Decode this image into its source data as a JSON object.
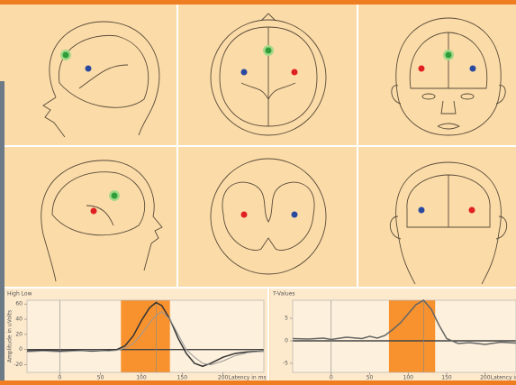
{
  "chart_data": [
    {
      "type": "line",
      "title": "High Low",
      "y_label": "Amplitude in uVolts",
      "x_label": "Latency in ms",
      "x": [
        -40,
        -20,
        0,
        20,
        40,
        60,
        70,
        80,
        90,
        100,
        110,
        118,
        125,
        135,
        145,
        155,
        165,
        175,
        185,
        200,
        215,
        230,
        250
      ],
      "series": [
        {
          "color": "#333333",
          "values": [
            -2,
            -1,
            -2,
            -1,
            -2,
            -1,
            0,
            5,
            18,
            38,
            55,
            62,
            58,
            40,
            15,
            -5,
            -18,
            -22,
            -18,
            -10,
            -5,
            -3,
            -2
          ]
        },
        {
          "color": "#999999",
          "values": [
            -3,
            -2,
            -3,
            -2,
            -1,
            -2,
            -1,
            2,
            8,
            20,
            35,
            45,
            50,
            40,
            20,
            0,
            -10,
            -18,
            -20,
            -15,
            -8,
            -4,
            -2
          ]
        }
      ],
      "highlight": [
        75,
        135
      ],
      "highlight_color": "#f7922f",
      "vlines": [
        0,
        118
      ],
      "xlim": [
        -40,
        250
      ],
      "ylim": [
        -30,
        65
      ],
      "xticks": [
        0,
        50,
        100,
        150,
        200
      ],
      "yticks": [
        -20,
        0,
        20,
        40,
        60
      ]
    },
    {
      "type": "line",
      "title": "T-Values",
      "x_label": "Latency in ms",
      "x": [
        -50,
        -30,
        -10,
        0,
        20,
        40,
        50,
        60,
        70,
        80,
        90,
        100,
        110,
        120,
        130,
        140,
        150,
        165,
        180,
        200,
        220,
        240
      ],
      "series": [
        {
          "color": "#666666",
          "values": [
            0.5,
            0.4,
            0.6,
            0.3,
            0.8,
            0.5,
            1.0,
            0.6,
            1.2,
            2.5,
            4,
            6,
            8,
            9,
            7,
            3.5,
            0.5,
            -0.6,
            -0.4,
            -0.8,
            -0.3,
            -0.5
          ]
        }
      ],
      "highlight": [
        75,
        135
      ],
      "highlight_color": "#f7922f",
      "vlines": [
        0,
        120
      ],
      "xlim": [
        -50,
        240
      ],
      "ylim": [
        -7,
        9
      ],
      "xticks": [
        0,
        50,
        100,
        150,
        200
      ],
      "yticks": [
        -5,
        0,
        5
      ]
    }
  ]
}
